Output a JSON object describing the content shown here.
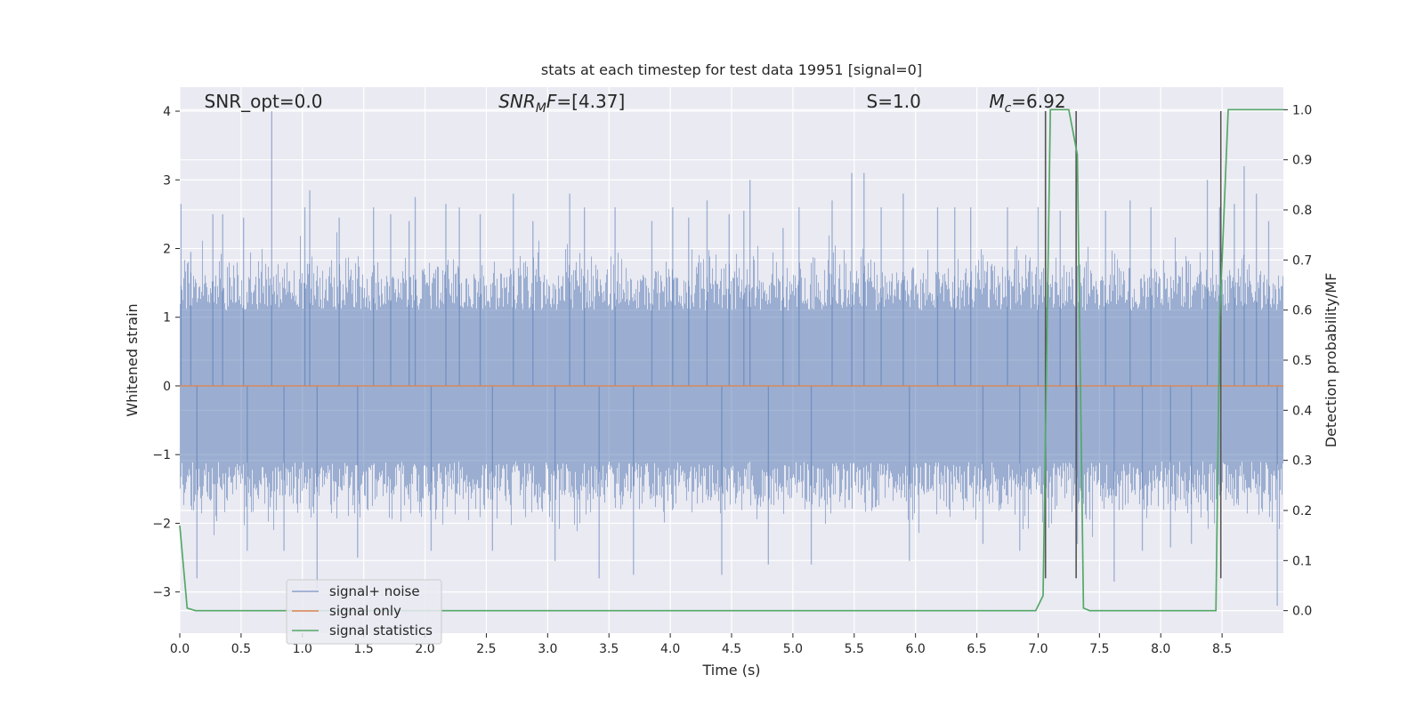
{
  "chart_data": {
    "type": "line",
    "title": "stats at each timestep for test data 19951 [signal=0]",
    "xlabel": "Time (s)",
    "ylabel_left": "Whitened strain",
    "ylabel_right": "Detection probability/MF",
    "xlim": [
      0.0,
      9.0
    ],
    "ylim_left": [
      -3.6,
      4.35
    ],
    "ylim_right": [
      -0.045,
      1.045
    ],
    "x_ticks": [
      0.0,
      0.5,
      1.0,
      1.5,
      2.0,
      2.5,
      3.0,
      3.5,
      4.0,
      4.5,
      5.0,
      5.5,
      6.0,
      6.5,
      7.0,
      7.5,
      8.0,
      8.5
    ],
    "x_tick_labels": [
      "0.0",
      "0.5",
      "1.0",
      "1.5",
      "2.0",
      "2.5",
      "3.0",
      "3.5",
      "4.0",
      "4.5",
      "5.0",
      "5.5",
      "6.0",
      "6.5",
      "7.0",
      "7.5",
      "8.0",
      "8.5"
    ],
    "y_left_ticks": [
      -3,
      -2,
      -1,
      0,
      1,
      2,
      3,
      4
    ],
    "y_left_tick_labels": [
      "−3",
      "−2",
      "−1",
      "0",
      "1",
      "2",
      "3",
      "4"
    ],
    "y_right_ticks": [
      0.0,
      0.1,
      0.2,
      0.3,
      0.4,
      0.5,
      0.6,
      0.7,
      0.8,
      0.9,
      1.0
    ],
    "y_right_tick_labels": [
      "0.0",
      "0.1",
      "0.2",
      "0.3",
      "0.4",
      "0.5",
      "0.6",
      "0.7",
      "0.8",
      "0.9",
      "1.0"
    ],
    "grid": true,
    "legend_position": "lower-left",
    "annotations": [
      {
        "text": "SNR_opt=0.0",
        "x": 0.2,
        "y": 4.05
      },
      {
        "text": "SNR",
        "sub": "M",
        "tail": "F=[4.37]",
        "x": 2.6,
        "y": 4.05
      },
      {
        "text": "S",
        "tail": "=1.0",
        "x": 5.6,
        "y": 4.05
      },
      {
        "text": "M",
        "sub": "c",
        "tail": "=6.92",
        "x": 6.6,
        "y": 4.05
      }
    ],
    "series": [
      {
        "name": "signal+ noise",
        "color": "#4c72b0",
        "axis": "left",
        "style": "noise",
        "envelope": {
          "core_low": -1.1,
          "core_high": 1.1,
          "typical_low": -1.7,
          "typical_high": 1.7
        },
        "spikes": [
          [
            0.01,
            2.65
          ],
          [
            0.09,
            1.95
          ],
          [
            0.14,
            -2.8
          ],
          [
            0.27,
            2.5
          ],
          [
            0.35,
            2.5
          ],
          [
            0.52,
            2.45
          ],
          [
            0.55,
            -2.4
          ],
          [
            0.75,
            4.0
          ],
          [
            0.85,
            -2.4
          ],
          [
            1.02,
            2.6
          ],
          [
            1.06,
            2.85
          ],
          [
            1.12,
            -2.95
          ],
          [
            1.3,
            2.45
          ],
          [
            1.45,
            -2.5
          ],
          [
            1.58,
            2.6
          ],
          [
            1.72,
            2.5
          ],
          [
            1.87,
            2.4
          ],
          [
            1.92,
            2.75
          ],
          [
            2.05,
            -2.4
          ],
          [
            2.17,
            2.65
          ],
          [
            2.28,
            2.6
          ],
          [
            2.45,
            2.5
          ],
          [
            2.55,
            -2.4
          ],
          [
            2.72,
            2.8
          ],
          [
            2.88,
            2.4
          ],
          [
            3.06,
            -2.55
          ],
          [
            3.18,
            2.8
          ],
          [
            3.3,
            2.6
          ],
          [
            3.42,
            -2.8
          ],
          [
            3.55,
            2.6
          ],
          [
            3.7,
            -2.75
          ],
          [
            3.85,
            2.4
          ],
          [
            4.02,
            2.6
          ],
          [
            4.15,
            2.45
          ],
          [
            4.3,
            2.7
          ],
          [
            4.42,
            -2.75
          ],
          [
            4.48,
            2.5
          ],
          [
            4.6,
            2.55
          ],
          [
            4.65,
            3.0
          ],
          [
            4.8,
            -2.6
          ],
          [
            4.92,
            2.3
          ],
          [
            5.05,
            2.6
          ],
          [
            5.15,
            -2.6
          ],
          [
            5.32,
            2.7
          ],
          [
            5.48,
            3.1
          ],
          [
            5.58,
            3.1
          ],
          [
            5.72,
            2.6
          ],
          [
            5.9,
            2.8
          ],
          [
            5.95,
            -2.55
          ],
          [
            6.18,
            2.6
          ],
          [
            6.32,
            2.6
          ],
          [
            6.45,
            2.6
          ],
          [
            6.55,
            -2.3
          ],
          [
            6.75,
            2.6
          ],
          [
            6.85,
            -2.4
          ],
          [
            7.0,
            2.6
          ],
          [
            7.18,
            2.55
          ],
          [
            7.32,
            -2.3
          ],
          [
            7.55,
            2.55
          ],
          [
            7.62,
            -2.85
          ],
          [
            7.75,
            2.7
          ],
          [
            7.85,
            -2.4
          ],
          [
            7.92,
            2.6
          ],
          [
            8.08,
            -2.35
          ],
          [
            8.25,
            -2.3
          ],
          [
            8.38,
            3.0
          ],
          [
            8.48,
            2.6
          ],
          [
            8.6,
            2.65
          ],
          [
            8.68,
            3.2
          ],
          [
            8.78,
            2.8
          ],
          [
            8.88,
            2.4
          ],
          [
            8.95,
            -3.2
          ]
        ]
      },
      {
        "name": "signal only",
        "color": "#dd8452",
        "axis": "left",
        "x": [
          0.0,
          9.0
        ],
        "y": [
          0.0,
          0.0
        ]
      },
      {
        "name": "signal statistics",
        "color": "#55a868",
        "axis": "right",
        "x": [
          0.0,
          0.06,
          0.13,
          6.98,
          7.04,
          7.1,
          7.14,
          7.25,
          7.32,
          7.37,
          7.42,
          8.45,
          8.48,
          8.55,
          9.0
        ],
        "y": [
          0.17,
          0.005,
          0.0,
          0.0,
          0.03,
          1.0,
          1.0,
          1.0,
          0.91,
          0.005,
          0.0,
          0.0,
          0.58,
          1.0,
          1.0
        ]
      }
    ],
    "vertical_markers": {
      "color": "#555555",
      "x": [
        7.06,
        7.31,
        8.49
      ],
      "y_range": [
        -2.8,
        4.0
      ]
    }
  }
}
